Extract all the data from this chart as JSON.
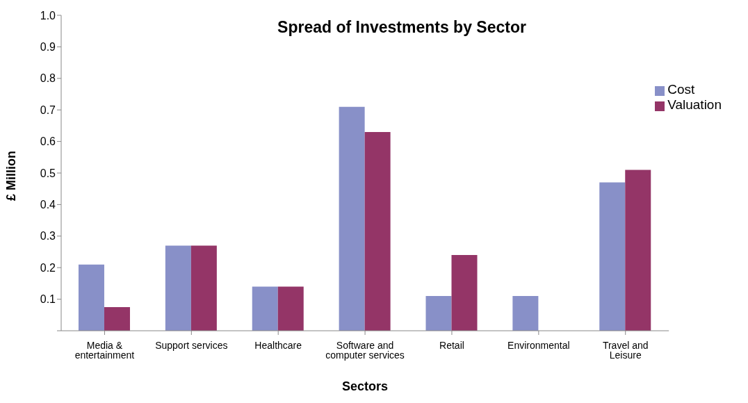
{
  "chart_data": {
    "type": "bar",
    "title": "Spread of Investments by Sector",
    "xlabel": "Sectors",
    "ylabel": "£ Million",
    "categories": [
      "Media & entertainment",
      "Support services",
      "Healthcare",
      "Software and computer services",
      "Retail",
      "Environmental",
      "Travel and Leisure"
    ],
    "series": [
      {
        "name": "Cost",
        "color": "#8890c8",
        "values": [
          0.21,
          0.27,
          0.14,
          0.71,
          0.11,
          0.11,
          0.47
        ]
      },
      {
        "name": "Valuation",
        "color": "#943567",
        "values": [
          0.075,
          0.27,
          0.14,
          0.63,
          0.24,
          0,
          0.51
        ]
      }
    ],
    "ylim": [
      0,
      1
    ],
    "yticks": [
      {
        "value": 0,
        "label": null
      },
      {
        "value": 0.1,
        "label": "0.1"
      },
      {
        "value": 0.2,
        "label": "0.2"
      },
      {
        "value": 0.3,
        "label": "0.3"
      },
      {
        "value": 0.4,
        "label": "0.4"
      },
      {
        "value": 0.5,
        "label": "0.5"
      },
      {
        "value": 0.6,
        "label": "0.6"
      },
      {
        "value": 0.7,
        "label": "0.7"
      },
      {
        "value": 0.8,
        "label": "0.8"
      },
      {
        "value": 0.9,
        "label": "0.9"
      },
      {
        "value": 1,
        "label": "1.0"
      }
    ],
    "grid": false,
    "legend": "top right"
  }
}
